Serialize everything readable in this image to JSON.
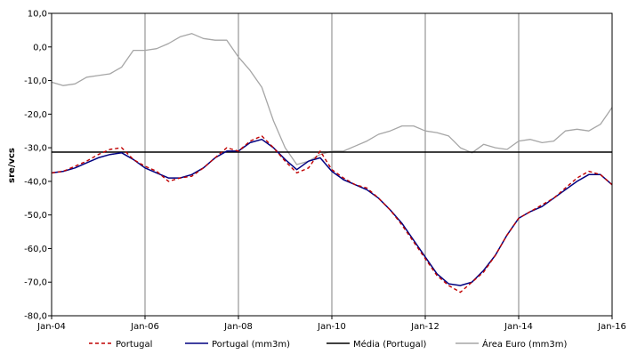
{
  "chart_data": {
    "type": "line",
    "title": "",
    "xlabel": "",
    "ylabel": "sre/vcs",
    "ylim": [
      -80,
      10
    ],
    "xlim": [
      "2004-01",
      "2016-01"
    ],
    "y_ticks": [
      "10,0",
      "0,0",
      "-10,0",
      "-20,0",
      "-30,0",
      "-40,0",
      "-50,0",
      "-60,0",
      "-70,0",
      "-80,0"
    ],
    "x_ticks": [
      "Jan-04",
      "Jan-06",
      "Jan-08",
      "Jan-10",
      "Jan-12",
      "Jan-14",
      "Jan-16"
    ],
    "grid": "vertical",
    "legend_position": "bottom",
    "colors": {
      "portugal": "#C00000",
      "portugal_mm3m": "#000080",
      "media": "#000000",
      "area_euro": "#A6A6A6"
    },
    "series": [
      {
        "name": "Portugal",
        "style": "dashed",
        "x": [
          "2004-01",
          "2004-04",
          "2004-07",
          "2004-10",
          "2005-01",
          "2005-04",
          "2005-07",
          "2005-10",
          "2006-01",
          "2006-04",
          "2006-07",
          "2006-10",
          "2007-01",
          "2007-04",
          "2007-07",
          "2007-10",
          "2008-01",
          "2008-04",
          "2008-07",
          "2008-10",
          "2009-01",
          "2009-04",
          "2009-07",
          "2009-10",
          "2010-01",
          "2010-04",
          "2010-07",
          "2010-10",
          "2011-01",
          "2011-04",
          "2011-07",
          "2011-10",
          "2012-01",
          "2012-04",
          "2012-07",
          "2012-10",
          "2013-01",
          "2013-04",
          "2013-07",
          "2013-10",
          "2014-01",
          "2014-04",
          "2014-07",
          "2014-10",
          "2015-01",
          "2015-04",
          "2015-07",
          "2015-10",
          "2016-01"
        ],
        "values": [
          -37.5,
          -37,
          -35.5,
          -34,
          -32,
          -30.5,
          -30,
          -33.5,
          -35.5,
          -37,
          -40,
          -39,
          -38.5,
          -36,
          -33,
          -30,
          -31,
          -28,
          -26.5,
          -30,
          -34,
          -37.5,
          -36,
          -31,
          -36.5,
          -39,
          -41,
          -42,
          -45,
          -48.5,
          -53,
          -58,
          -63,
          -68,
          -71,
          -73,
          -70,
          -67,
          -62,
          -56,
          -51,
          -49,
          -47,
          -45,
          -42,
          -39,
          -37,
          -38,
          -41
        ]
      },
      {
        "name": "Portugal (mm3m)",
        "style": "solid",
        "x": [
          "2004-01",
          "2004-04",
          "2004-07",
          "2004-10",
          "2005-01",
          "2005-04",
          "2005-07",
          "2005-10",
          "2006-01",
          "2006-04",
          "2006-07",
          "2006-10",
          "2007-01",
          "2007-04",
          "2007-07",
          "2007-10",
          "2008-01",
          "2008-04",
          "2008-07",
          "2008-10",
          "2009-01",
          "2009-04",
          "2009-07",
          "2009-10",
          "2010-01",
          "2010-04",
          "2010-07",
          "2010-10",
          "2011-01",
          "2011-04",
          "2011-07",
          "2011-10",
          "2012-01",
          "2012-04",
          "2012-07",
          "2012-10",
          "2013-01",
          "2013-04",
          "2013-07",
          "2013-10",
          "2014-01",
          "2014-04",
          "2014-07",
          "2014-10",
          "2015-01",
          "2015-04",
          "2015-07",
          "2015-10",
          "2016-01"
        ],
        "values": [
          -37.5,
          -37,
          -36,
          -34.5,
          -33,
          -32,
          -31.5,
          -33.5,
          -36,
          -37.5,
          -39,
          -39,
          -38,
          -36,
          -33,
          -31,
          -31,
          -28.5,
          -27.5,
          -30,
          -33.5,
          -36.5,
          -34,
          -33,
          -37,
          -39.5,
          -41,
          -42.5,
          -45,
          -48.5,
          -52.5,
          -57.5,
          -62.5,
          -67.5,
          -70.5,
          -71,
          -70,
          -66.5,
          -62,
          -56,
          -51,
          -49,
          -47.5,
          -45,
          -42.5,
          -40,
          -38,
          -38,
          -41
        ]
      },
      {
        "name": "Média (Portugal)",
        "style": "solid",
        "x": [
          "2004-01",
          "2016-01"
        ],
        "values": [
          -31.3,
          -31.3
        ]
      },
      {
        "name": "Área Euro (mm3m)",
        "style": "solid",
        "x": [
          "2004-01",
          "2004-04",
          "2004-07",
          "2004-10",
          "2005-01",
          "2005-04",
          "2005-07",
          "2005-10",
          "2006-01",
          "2006-04",
          "2006-07",
          "2006-10",
          "2007-01",
          "2007-04",
          "2007-07",
          "2007-10",
          "2008-01",
          "2008-04",
          "2008-07",
          "2008-10",
          "2009-01",
          "2009-04",
          "2009-07",
          "2009-10",
          "2010-01",
          "2010-04",
          "2010-07",
          "2010-10",
          "2011-01",
          "2011-04",
          "2011-07",
          "2011-10",
          "2012-01",
          "2012-04",
          "2012-07",
          "2012-10",
          "2013-01",
          "2013-04",
          "2013-07",
          "2013-10",
          "2014-01",
          "2014-04",
          "2014-07",
          "2014-10",
          "2015-01",
          "2015-04",
          "2015-07",
          "2015-10",
          "2016-01"
        ],
        "values": [
          -10.5,
          -11.5,
          -11,
          -9,
          -8.5,
          -8,
          -6,
          -1,
          -1,
          -0.5,
          1,
          3,
          4,
          2.5,
          2,
          2,
          -3,
          -7,
          -12,
          -22,
          -30,
          -35,
          -34,
          -32,
          -31,
          -31,
          -29.5,
          -28,
          -26,
          -25,
          -23.5,
          -23.5,
          -25,
          -25.5,
          -26.5,
          -30,
          -31.5,
          -29,
          -30,
          -30.5,
          -28,
          -27.5,
          -28.5,
          -28,
          -25,
          -24.5,
          -25,
          -23,
          -18
        ]
      }
    ]
  }
}
